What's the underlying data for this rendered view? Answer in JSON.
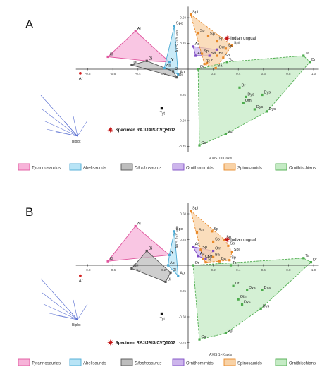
{
  "chart_data": [
    {
      "type": "scatter",
      "panel": "A",
      "xlabel": "AXIS 1=X axis",
      "ylabel": "AXIS 2=Y axis",
      "xlim": [
        -0.85,
        1.02
      ],
      "ylim": [
        -0.78,
        0.58
      ],
      "x_ticks": [
        "-0.8",
        "-0.6",
        "-0.4",
        "-0.2",
        "0.2",
        "0.4",
        "0.6",
        "0.8",
        "1.0"
      ],
      "y_ticks": [
        "0.50",
        "0.25",
        "-0.25",
        "-0.50",
        "-0.75"
      ],
      "groups": [
        {
          "name": "Tyrannosaurids",
          "fill": "#f7b3d9",
          "stroke": "#e0569e",
          "points": [
            {
              "label": "Kl",
              "x": -0.64,
              "y": 0.12
            },
            {
              "label": "Al",
              "x": -0.42,
              "y": 0.37
            },
            {
              "label": "Y",
              "x": -0.15,
              "y": 0.07
            },
            {
              "label": "Di",
              "x": -0.33,
              "y": 0.08
            }
          ]
        },
        {
          "name": "Abelisaurids",
          "fill": "#b8e4f6",
          "stroke": "#4aa9d4",
          "points": [
            {
              "label": "Spc",
              "x": -0.11,
              "y": 0.42
            },
            {
              "label": "Y",
              "x": -0.15,
              "y": 0.07
            },
            {
              "label": "Ab",
              "x": -0.08,
              "y": -0.05
            },
            {
              "label": "Ab",
              "x": -0.19,
              "y": 0.01
            }
          ]
        },
        {
          "name": "Dilophosaurus",
          "fill": "#bdbdbd",
          "stroke": "#555555",
          "points": [
            {
              "label": "Di",
              "x": -0.33,
              "y": 0.08
            },
            {
              "label": "Di",
              "x": -0.45,
              "y": 0.04
            },
            {
              "label": "Dl",
              "x": -0.12,
              "y": -0.02
            },
            {
              "label": "Di",
              "x": -0.09,
              "y": -0.08
            }
          ]
        },
        {
          "name": "Ornithomimids",
          "fill": "#cdb5ec",
          "stroke": "#7e4cc4",
          "points": [
            {
              "label": "Ae",
              "x": 0.04,
              "y": 0.22
            },
            {
              "label": "Orn",
              "x": 0.23,
              "y": 0.19
            },
            {
              "label": "Au",
              "x": 0.06,
              "y": 0.13
            },
            {
              "label": "Str",
              "x": 0.17,
              "y": 0.13
            }
          ]
        },
        {
          "name": "Spinosaurids",
          "fill": "#f8d2a6",
          "stroke": "#e8892a",
          "points": [
            {
              "label": "Spi",
              "x": 0.02,
              "y": 0.53
            },
            {
              "label": "Sp",
              "x": 0.08,
              "y": 0.35
            },
            {
              "label": "Sp",
              "x": 0.16,
              "y": 0.32
            },
            {
              "label": "Sp",
              "x": 0.23,
              "y": 0.27
            },
            {
              "label": "Spi",
              "x": 0.35,
              "y": 0.23
            },
            {
              "label": "Sp",
              "x": 0.3,
              "y": 0.2
            },
            {
              "label": "Ba",
              "x": 0.23,
              "y": 0.13
            },
            {
              "label": "Cr",
              "x": 0.15,
              "y": 0.06
            },
            {
              "label": "Ba",
              "x": 0.22,
              "y": 0.01
            },
            {
              "label": "Sp",
              "x": 0.28,
              "y": 0.11
            },
            {
              "label": "Te",
              "x": 0.13,
              "y": 0.05
            },
            {
              "label": "Sp",
              "x": 0.11,
              "y": 0.15
            }
          ]
        },
        {
          "name": "Ornithischians",
          "fill": "#c5ebc5",
          "stroke": "#4dac4d",
          "points": [
            {
              "label": "Ta",
              "x": 0.92,
              "y": 0.13
            },
            {
              "label": "Dr",
              "x": 0.97,
              "y": 0.07
            },
            {
              "label": "Tc",
              "x": 0.31,
              "y": 0.07
            },
            {
              "label": "Or",
              "x": 0.08,
              "y": 0.0
            },
            {
              "label": "Dr",
              "x": 0.41,
              "y": -0.18
            },
            {
              "label": "Dys",
              "x": 0.46,
              "y": -0.27
            },
            {
              "label": "Dys",
              "x": 0.59,
              "y": -0.25
            },
            {
              "label": "Oth",
              "x": 0.44,
              "y": -0.33
            },
            {
              "label": "Dys",
              "x": 0.53,
              "y": -0.39
            },
            {
              "label": "Dys",
              "x": 0.63,
              "y": -0.41
            },
            {
              "label": "Vg",
              "x": 0.3,
              "y": -0.63
            },
            {
              "label": "Ca",
              "x": 0.09,
              "y": -0.74
            }
          ]
        }
      ],
      "isolated": [
        {
          "label": "Af",
          "x": -0.86,
          "y": -0.04
        },
        {
          "label": "Tyt",
          "x": -0.21,
          "y": -0.38
        }
      ],
      "specimen": {
        "label": "Specimen RAJ/JAIS/CVQ5002",
        "x": -0.62,
        "y": -0.59
      },
      "indian_ungual": {
        "label": "Indian ungual",
        "x": 0.31,
        "y": 0.3
      }
    },
    {
      "type": "scatter",
      "panel": "B",
      "xlabel": "AXIS 1=X axis",
      "ylabel": "AXIS 2=Y axis",
      "xlim": [
        -0.85,
        1.02
      ],
      "ylim": [
        -0.78,
        0.58
      ],
      "x_ticks": [
        "-0.8",
        "-0.6",
        "-0.4",
        "-0.2",
        "0.2",
        "0.4",
        "0.6",
        "0.8",
        "1.0"
      ],
      "y_ticks": [
        "0.50",
        "0.25",
        "-0.25",
        "-0.50",
        "-0.75"
      ],
      "groups": [
        {
          "name": "Tyrannosaurids",
          "fill": "#f7b3d9",
          "stroke": "#e0569e",
          "points": [
            {
              "label": "Kl",
              "x": -0.64,
              "y": 0.04
            },
            {
              "label": "Al",
              "x": -0.42,
              "y": 0.38
            },
            {
              "label": "Y",
              "x": -0.15,
              "y": 0.1
            },
            {
              "label": "Di",
              "x": -0.33,
              "y": 0.14
            }
          ]
        },
        {
          "name": "Abelisaurids",
          "fill": "#b8e4f6",
          "stroke": "#4aa9d4",
          "points": [
            {
              "label": "Spe",
              "x": -0.11,
              "y": 0.33
            },
            {
              "label": "Y",
              "x": -0.15,
              "y": 0.1
            },
            {
              "label": "Ab",
              "x": -0.08,
              "y": -0.1
            },
            {
              "label": "Ab",
              "x": -0.16,
              "y": 0.0
            }
          ]
        },
        {
          "name": "Dilophosaurus",
          "fill": "#bdbdbd",
          "stroke": "#555555",
          "points": [
            {
              "label": "Di",
              "x": -0.33,
              "y": 0.14
            },
            {
              "label": "Di",
              "x": -0.45,
              "y": -0.03
            },
            {
              "label": "Dl",
              "x": -0.14,
              "y": -0.07
            },
            {
              "label": "Di",
              "x": -0.18,
              "y": -0.16
            }
          ]
        },
        {
          "name": "Ornithomimids",
          "fill": "#cdb5ec",
          "stroke": "#7e4cc4",
          "points": [
            {
              "label": "Ae",
              "x": 0.04,
              "y": 0.18
            },
            {
              "label": "Orn",
              "x": 0.2,
              "y": 0.14
            },
            {
              "label": "Au",
              "x": 0.08,
              "y": 0.09
            },
            {
              "label": "Str",
              "x": 0.14,
              "y": 0.06
            }
          ]
        },
        {
          "name": "Spinosaurids",
          "fill": "#f8d2a6",
          "stroke": "#e8892a",
          "points": [
            {
              "label": "Spi",
              "x": 0.02,
              "y": 0.53
            },
            {
              "label": "Sp",
              "x": 0.07,
              "y": 0.32
            },
            {
              "label": "Sp",
              "x": 0.19,
              "y": 0.33
            },
            {
              "label": "Sp",
              "x": 0.2,
              "y": 0.23
            },
            {
              "label": "Sp",
              "x": 0.29,
              "y": 0.25
            },
            {
              "label": "Sp",
              "x": 0.32,
              "y": 0.19
            },
            {
              "label": "Spi",
              "x": 0.35,
              "y": 0.13
            },
            {
              "label": "Ba",
              "x": 0.2,
              "y": 0.08
            },
            {
              "label": "Cr",
              "x": 0.12,
              "y": 0.06
            },
            {
              "label": "Ba",
              "x": 0.25,
              "y": 0.04
            },
            {
              "label": "Sp",
              "x": 0.33,
              "y": 0.05
            },
            {
              "label": "Te",
              "x": 0.14,
              "y": 0.03
            },
            {
              "label": "Sp",
              "x": 0.1,
              "y": 0.15
            }
          ]
        },
        {
          "name": "Ornithischians",
          "fill": "#c5ebc5",
          "stroke": "#4dac4d",
          "points": [
            {
              "label": "Ta",
              "x": 0.92,
              "y": 0.07
            },
            {
              "label": "Dr",
              "x": 0.98,
              "y": 0.03
            },
            {
              "label": "Tc",
              "x": 0.34,
              "y": 0.0
            },
            {
              "label": "Or",
              "x": 0.04,
              "y": 0.0
            },
            {
              "label": "Dr",
              "x": 0.36,
              "y": -0.2
            },
            {
              "label": "Dys",
              "x": 0.47,
              "y": -0.24
            },
            {
              "label": "Dys",
              "x": 0.59,
              "y": -0.24
            },
            {
              "label": "Oth",
              "x": 0.4,
              "y": -0.33
            },
            {
              "label": "Dys",
              "x": 0.43,
              "y": -0.38
            },
            {
              "label": "Dys",
              "x": 0.58,
              "y": -0.42
            },
            {
              "label": "Vg",
              "x": 0.3,
              "y": -0.66
            },
            {
              "label": "Ca",
              "x": 0.09,
              "y": -0.72
            }
          ]
        }
      ],
      "isolated": [
        {
          "label": "Ar",
          "x": -0.86,
          "y": -0.1
        },
        {
          "label": "Tyt",
          "x": -0.21,
          "y": -0.47
        }
      ],
      "specimen": {
        "label": "Specimen RAJ/JAIS/CVQ5002",
        "x": -0.62,
        "y": -0.75
      },
      "indian_ungual": {
        "label": "Indian ungual",
        "x": 0.31,
        "y": 0.25
      }
    }
  ],
  "biplot_label": "Biplot",
  "legend": [
    {
      "name": "Tyrannosaurids",
      "fill": "#f7b3d9",
      "stroke": "#e0569e",
      "italic": false
    },
    {
      "name": "Abelisaurids",
      "fill": "#b8e4f6",
      "stroke": "#4aa9d4",
      "italic": false
    },
    {
      "name": "Dilophosaurus",
      "fill": "#bdbdbd",
      "stroke": "#555555",
      "italic": true
    },
    {
      "name": "Ornithomimids",
      "fill": "#cdb5ec",
      "stroke": "#7e4cc4",
      "italic": false
    },
    {
      "name": "Spinosaurids",
      "fill": "#f8d2a6",
      "stroke": "#e8892a",
      "italic": false
    },
    {
      "name": "Ornithischians",
      "fill": "#c5ebc5",
      "stroke": "#4dac4d",
      "italic": false
    }
  ]
}
